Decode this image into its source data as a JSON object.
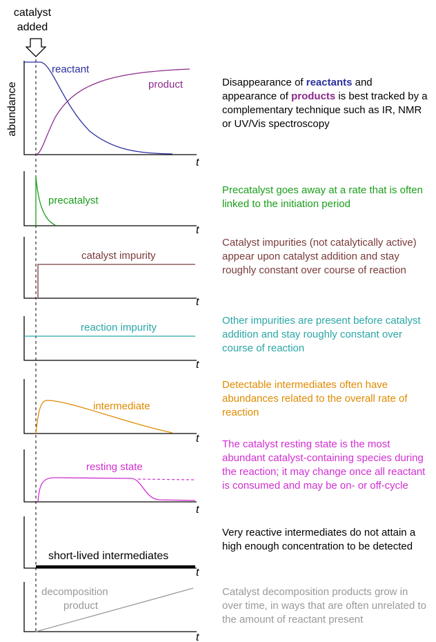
{
  "annotation": {
    "lines": [
      "catalyst",
      "added"
    ]
  },
  "y_axis_label": "abundance",
  "panels": [
    {
      "labels": [
        "reactant",
        "product"
      ],
      "axis_label": "t",
      "description": [
        "Disappearance of ",
        "reactants",
        " and appearance of ",
        "products",
        " is best tracked by a complementary technique such as IR, NMR or UV/Vis spectroscopy"
      ]
    },
    {
      "labels": [
        "precatalyst"
      ],
      "axis_label": "t",
      "description": "Precatalyst goes away at a rate that is often linked to the initiation period"
    },
    {
      "labels": [
        "catalyst impurity"
      ],
      "axis_label": "t",
      "description": "Catalyst impurities (not catalytically active) appear upon catalyst addition and stay roughly constant over course of reaction"
    },
    {
      "labels": [
        "reaction impurity"
      ],
      "axis_label": "t",
      "description": "Other impurities are present before catalyst addition and stay roughly constant over course of reaction"
    },
    {
      "labels": [
        "intermediate"
      ],
      "axis_label": "t",
      "description": "Detectable intermediates often have abundances related to the overall rate of reaction"
    },
    {
      "labels": [
        "resting state"
      ],
      "axis_label": "t",
      "description": "The catalyst resting state is the most abundant catalyst-containing species during the reaction; it may change once all reactant is consumed and may be on- or off-cycle"
    },
    {
      "labels": [
        "short-lived intermediates"
      ],
      "axis_label": "t",
      "description": "Very reactive intermediates do not attain a high enough concentration to be detected"
    },
    {
      "labels": [
        "decomposition",
        "product"
      ],
      "axis_label": "t",
      "description": "Catalyst decomposition products grow in over time, in ways that are often unrelated to the amount of reactant present"
    }
  ]
}
